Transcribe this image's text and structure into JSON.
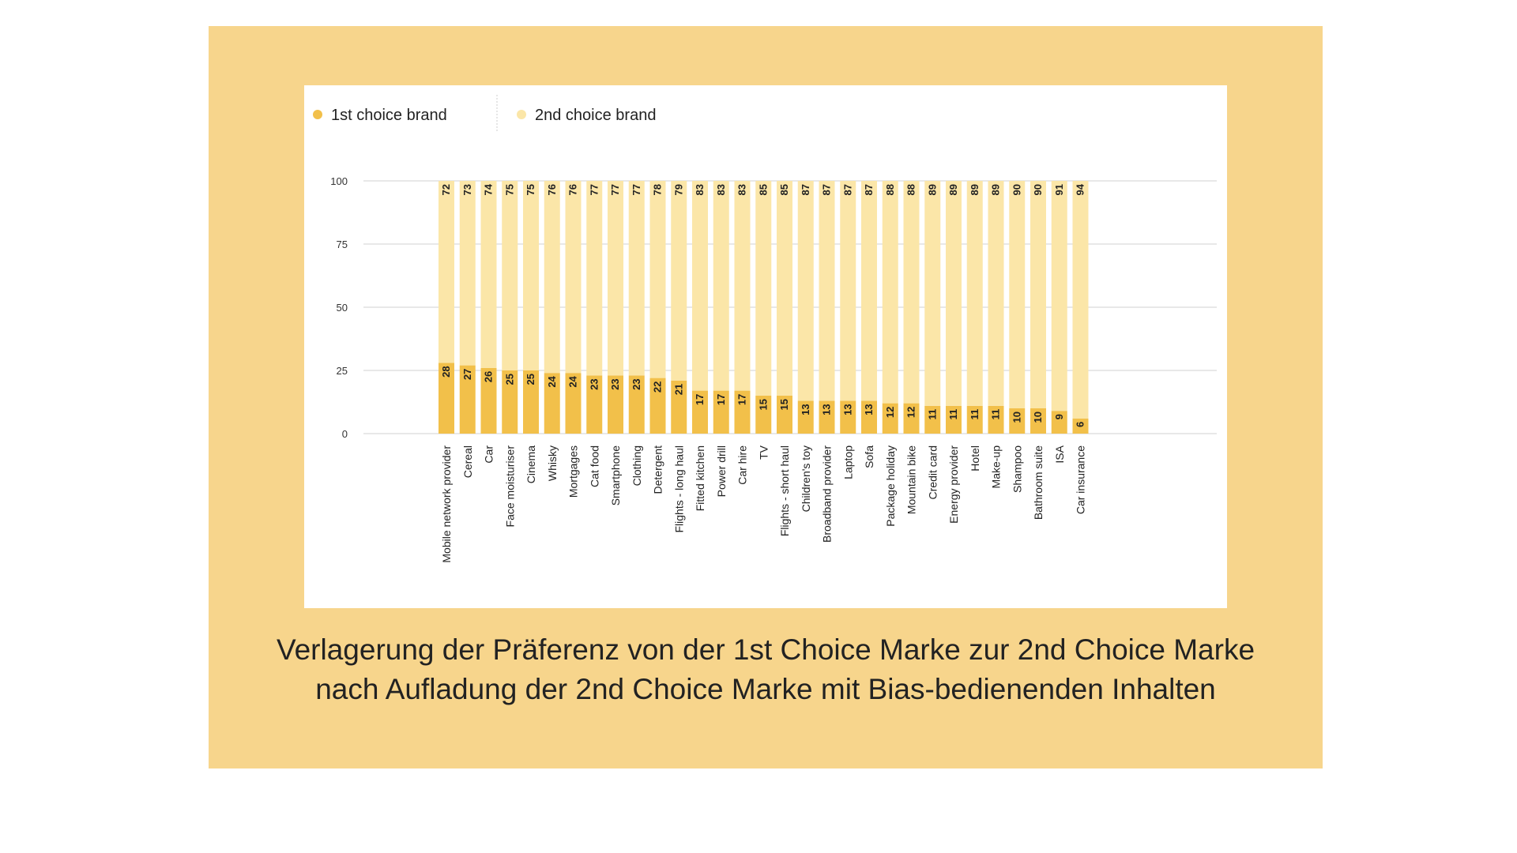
{
  "caption": {
    "line1": "Verlagerung der Präferenz von der 1st Choice Marke zur 2nd Choice Marke",
    "line2": "nach Aufladung der 2nd Choice Marke mit Bias-bedienenden Inhalten"
  },
  "colors": {
    "panel": "#f7d58c",
    "first_choice": "#f2c04a",
    "second_choice": "#fbe6a8",
    "grid": "#d0d0d0"
  },
  "chart_data": {
    "type": "bar",
    "stacked": true,
    "legend": {
      "position": "top-left"
    },
    "grid": true,
    "ylim": [
      0,
      100
    ],
    "yticks": [
      "0",
      "25",
      "50",
      "75",
      "100"
    ],
    "categories": [
      "Mobile network provider",
      "Cereal",
      "Car",
      "Face moisturiser",
      "Cinema",
      "Whisky",
      "Mortgages",
      "Cat food",
      "Smartphone",
      "Clothing",
      "Detergent",
      "Flights - long haul",
      "Fitted kitchen",
      "Power drill",
      "Car hire",
      "TV",
      "Flights - short haul",
      "Children's toy",
      "Broadband provider",
      "Laptop",
      "Sofa",
      "Package holiday",
      "Mountain bike",
      "Credit card",
      "Energy provider",
      "Hotel",
      "Make-up",
      "Shampoo",
      "Bathroom suite",
      "ISA",
      "Car insurance"
    ],
    "series": [
      {
        "name": "1st choice brand",
        "color": "#f2c04a",
        "values": [
          28,
          27,
          26,
          25,
          25,
          24,
          24,
          23,
          23,
          23,
          22,
          21,
          17,
          17,
          17,
          15,
          15,
          13,
          13,
          13,
          13,
          12,
          12,
          11,
          11,
          11,
          11,
          10,
          10,
          9,
          6
        ]
      },
      {
        "name": "2nd choice brand",
        "color": "#fbe6a8",
        "values": [
          72,
          73,
          74,
          75,
          75,
          76,
          76,
          77,
          77,
          77,
          78,
          79,
          83,
          83,
          83,
          85,
          85,
          87,
          87,
          87,
          87,
          88,
          88,
          89,
          89,
          89,
          89,
          90,
          90,
          91,
          94
        ]
      }
    ]
  }
}
